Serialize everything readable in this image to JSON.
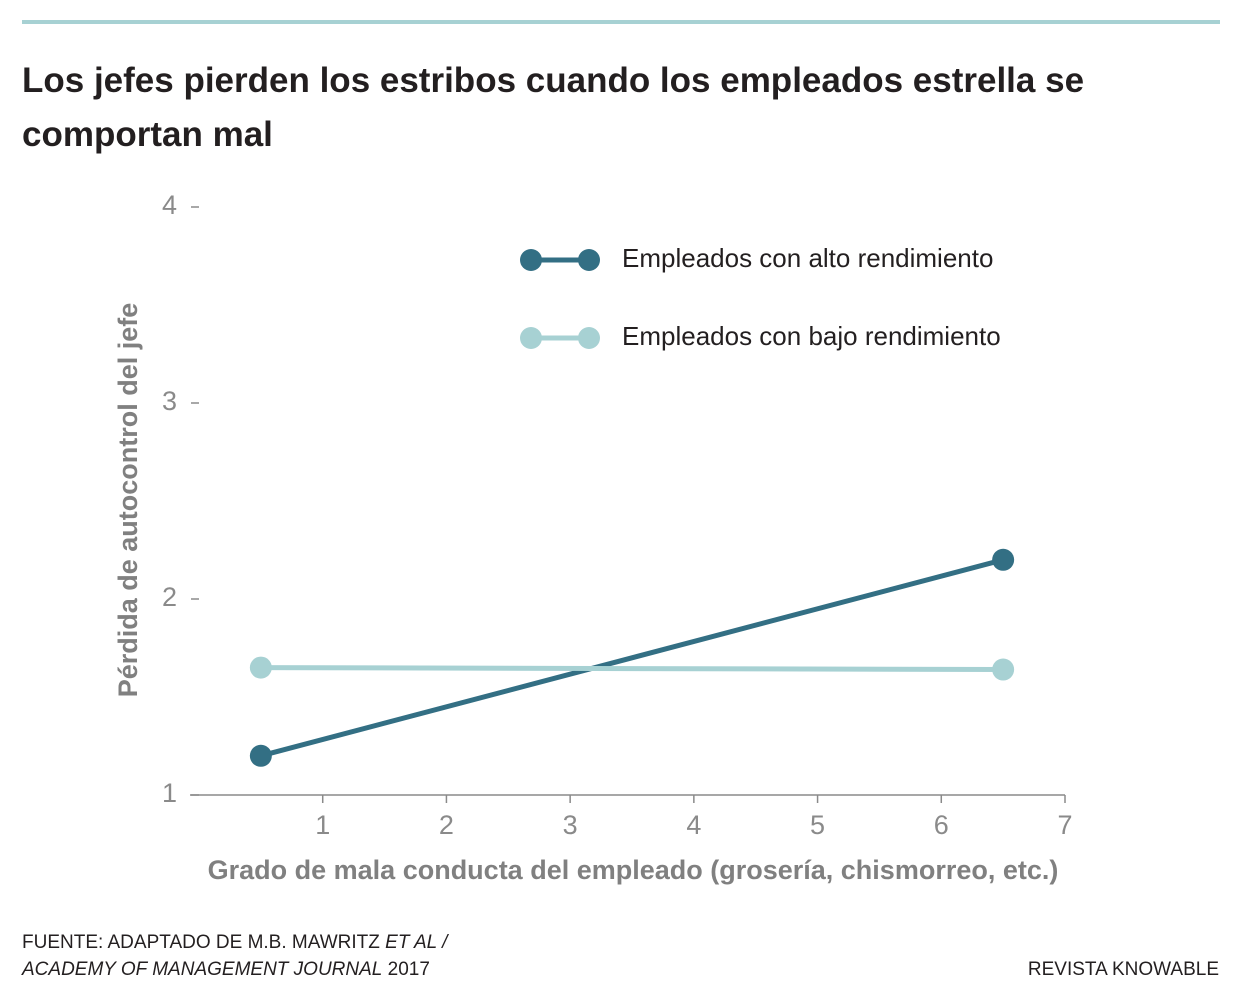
{
  "chart_data": {
    "type": "line",
    "title": "Los jefes pierden los estribos cuando los empleados estrella se comportan mal",
    "x_label": "Grado de mala conducta del empleado (grosería, chismorreo, etc.)",
    "y_label": "Pérdida de autocontrol del jefe",
    "x": [
      0.5,
      6.5
    ],
    "series": [
      {
        "name": "Empleados con alto rendimiento",
        "color": "#336f84",
        "values": [
          1.2,
          2.2
        ]
      },
      {
        "name": "Empleados con bajo rendimiento",
        "color": "#a7d1d3",
        "values": [
          1.65,
          1.64
        ]
      }
    ],
    "xlim": [
      0,
      7
    ],
    "ylim": [
      1,
      4
    ],
    "xticks": [
      1,
      2,
      3,
      4,
      5,
      6,
      7
    ],
    "yticks": [
      1,
      2,
      3,
      4
    ],
    "source": [
      "FUENTE: ADAPTADO DE M.B. MAWRITZ",
      "ET AL /",
      "ACADEMY OF MANAGEMENT JOURNAL",
      "2017"
    ],
    "credit": "REVISTA KNOWABLE"
  }
}
